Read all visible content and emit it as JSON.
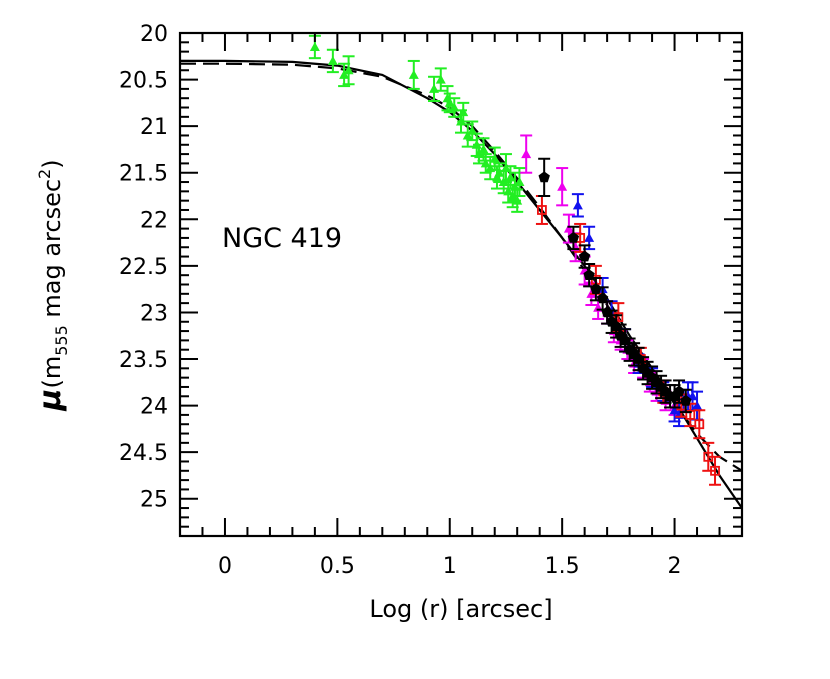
{
  "chart_data": {
    "type": "scatter",
    "title": "",
    "xlabel": "Log (r) [arcsec]",
    "ylabel": {
      "mu": "μ",
      "open": "(m",
      "sub": "555",
      "mid": " mag arcsec",
      "sup": "2",
      "close": ")"
    },
    "annotation": "NGC 419",
    "xlim": [
      -0.2,
      2.3
    ],
    "ylim": [
      20,
      25.4
    ],
    "y_inverted": true,
    "xticks": [
      0,
      0.5,
      1,
      1.5,
      2
    ],
    "xtick_labels": [
      "0",
      "0.5",
      "1",
      "1.5",
      "2"
    ],
    "yticks": [
      20,
      20.5,
      21,
      21.5,
      22,
      22.5,
      23,
      23.5,
      24,
      24.5,
      25
    ],
    "ytick_labels": [
      "20",
      "20.5",
      "21",
      "21.5",
      "22",
      "22.5",
      "23",
      "23.5",
      "24",
      "24.5",
      "25"
    ],
    "colors": {
      "green": "#22ee22",
      "magenta": "#ee00ee",
      "blue": "#1111ee",
      "red": "#ee1111",
      "black": "#000000"
    },
    "series": [
      {
        "name": "green",
        "color": "#22ee22",
        "marker": "triangle",
        "points": [
          [
            0.4,
            20.15,
            0.12
          ],
          [
            0.48,
            20.3,
            0.12
          ],
          [
            0.53,
            20.45,
            0.12
          ],
          [
            0.55,
            20.4,
            0.15
          ],
          [
            0.84,
            20.45,
            0.15
          ],
          [
            0.93,
            20.6,
            0.13
          ],
          [
            0.96,
            20.5,
            0.12
          ],
          [
            0.99,
            20.7,
            0.13
          ],
          [
            1.0,
            20.75,
            0.1
          ],
          [
            1.02,
            20.8,
            0.1
          ],
          [
            1.05,
            20.95,
            0.12
          ],
          [
            1.06,
            20.85,
            0.1
          ],
          [
            1.08,
            21.1,
            0.12
          ],
          [
            1.1,
            21.05,
            0.1
          ],
          [
            1.12,
            21.2,
            0.12
          ],
          [
            1.13,
            21.3,
            0.1
          ],
          [
            1.15,
            21.25,
            0.12
          ],
          [
            1.16,
            21.4,
            0.1
          ],
          [
            1.18,
            21.45,
            0.12
          ],
          [
            1.2,
            21.35,
            0.12
          ],
          [
            1.21,
            21.55,
            0.12
          ],
          [
            1.22,
            21.5,
            0.1
          ],
          [
            1.24,
            21.6,
            0.12
          ],
          [
            1.25,
            21.45,
            0.15
          ],
          [
            1.26,
            21.7,
            0.12
          ],
          [
            1.27,
            21.55,
            0.12
          ],
          [
            1.28,
            21.75,
            0.12
          ],
          [
            1.29,
            21.65,
            0.15
          ],
          [
            1.3,
            21.8,
            0.12
          ],
          [
            1.31,
            21.6,
            0.15
          ]
        ]
      },
      {
        "name": "magenta",
        "color": "#ee00ee",
        "marker": "triangle",
        "points": [
          [
            1.34,
            21.3,
            0.2
          ],
          [
            1.5,
            21.65,
            0.2
          ],
          [
            1.53,
            22.1,
            0.15
          ],
          [
            1.56,
            22.3,
            0.15
          ],
          [
            1.6,
            22.55,
            0.15
          ],
          [
            1.63,
            22.8,
            0.12
          ],
          [
            1.66,
            22.95,
            0.12
          ],
          [
            1.7,
            23.0,
            0.12
          ],
          [
            1.73,
            23.2,
            0.12
          ],
          [
            1.76,
            23.3,
            0.1
          ],
          [
            1.79,
            23.4,
            0.1
          ],
          [
            1.82,
            23.55,
            0.1
          ],
          [
            1.86,
            23.6,
            0.1
          ],
          [
            1.89,
            23.75,
            0.1
          ],
          [
            1.92,
            23.85,
            0.1
          ],
          [
            1.96,
            23.95,
            0.1
          ],
          [
            2.0,
            24.0,
            0.1
          ]
        ]
      },
      {
        "name": "blue",
        "color": "#1111ee",
        "marker": "triangle",
        "points": [
          [
            1.57,
            21.85,
            0.12
          ],
          [
            1.62,
            22.2,
            0.12
          ],
          [
            1.68,
            22.75,
            0.12
          ],
          [
            1.72,
            23.0,
            0.12
          ],
          [
            1.78,
            23.3,
            0.12
          ],
          [
            1.84,
            23.55,
            0.1
          ],
          [
            1.9,
            23.7,
            0.1
          ],
          [
            1.95,
            23.85,
            0.1
          ],
          [
            2.0,
            24.05,
            0.12
          ],
          [
            2.02,
            24.1,
            0.12
          ],
          [
            2.04,
            23.95,
            0.12
          ],
          [
            2.06,
            23.9,
            0.15
          ],
          [
            2.08,
            23.9,
            0.15
          ],
          [
            2.1,
            24.0,
            0.15
          ]
        ]
      },
      {
        "name": "red",
        "color": "#ee1111",
        "marker": "square",
        "points": [
          [
            1.41,
            21.9,
            0.15
          ],
          [
            1.58,
            22.2,
            0.15
          ],
          [
            1.65,
            22.65,
            0.15
          ],
          [
            1.75,
            23.05,
            0.15
          ],
          [
            1.85,
            23.5,
            0.12
          ],
          [
            1.95,
            23.85,
            0.12
          ],
          [
            2.03,
            24.0,
            0.12
          ],
          [
            2.07,
            24.1,
            0.12
          ],
          [
            2.11,
            24.2,
            0.15
          ],
          [
            2.15,
            24.55,
            0.15
          ],
          [
            2.18,
            24.7,
            0.15
          ]
        ]
      },
      {
        "name": "black",
        "color": "#000000",
        "marker": "pentagon",
        "points": [
          [
            1.42,
            21.55,
            0.2
          ],
          [
            1.55,
            22.2,
            0.12
          ],
          [
            1.6,
            22.4,
            0.12
          ],
          [
            1.62,
            22.6,
            0.12
          ],
          [
            1.65,
            22.75,
            0.12
          ],
          [
            1.68,
            22.85,
            0.12
          ],
          [
            1.7,
            23.0,
            0.12
          ],
          [
            1.72,
            23.1,
            0.12
          ],
          [
            1.74,
            23.15,
            0.12
          ],
          [
            1.76,
            23.25,
            0.12
          ],
          [
            1.78,
            23.3,
            0.12
          ],
          [
            1.8,
            23.4,
            0.12
          ],
          [
            1.82,
            23.45,
            0.12
          ],
          [
            1.84,
            23.5,
            0.12
          ],
          [
            1.86,
            23.6,
            0.12
          ],
          [
            1.88,
            23.65,
            0.12
          ],
          [
            1.9,
            23.7,
            0.12
          ],
          [
            1.92,
            23.75,
            0.12
          ],
          [
            1.94,
            23.8,
            0.12
          ],
          [
            1.96,
            23.85,
            0.12
          ],
          [
            1.98,
            23.9,
            0.12
          ],
          [
            2.0,
            23.9,
            0.12
          ],
          [
            2.02,
            23.85,
            0.12
          ],
          [
            2.05,
            23.95,
            0.12
          ]
        ]
      }
    ],
    "fits": [
      {
        "name": "solid-fit",
        "style": "solid",
        "points": [
          [
            -0.2,
            20.3
          ],
          [
            0.0,
            20.3
          ],
          [
            0.3,
            20.31
          ],
          [
            0.5,
            20.35
          ],
          [
            0.7,
            20.45
          ],
          [
            0.9,
            20.7
          ],
          [
            1.0,
            20.85
          ],
          [
            1.1,
            21.05
          ],
          [
            1.2,
            21.3
          ],
          [
            1.3,
            21.6
          ],
          [
            1.4,
            21.9
          ],
          [
            1.5,
            22.2
          ],
          [
            1.6,
            22.5
          ],
          [
            1.7,
            22.85
          ],
          [
            1.8,
            23.25
          ],
          [
            1.9,
            23.6
          ],
          [
            2.0,
            23.95
          ],
          [
            2.1,
            24.35
          ],
          [
            2.2,
            24.75
          ],
          [
            2.3,
            25.1
          ]
        ]
      },
      {
        "name": "dashed-fit",
        "style": "dashed",
        "points": [
          [
            -0.2,
            20.33
          ],
          [
            0.0,
            20.33
          ],
          [
            0.3,
            20.34
          ],
          [
            0.5,
            20.38
          ],
          [
            0.7,
            20.47
          ],
          [
            0.9,
            20.67
          ],
          [
            1.0,
            20.8
          ],
          [
            1.1,
            21.0
          ],
          [
            1.2,
            21.27
          ],
          [
            1.3,
            21.56
          ],
          [
            1.4,
            21.87
          ],
          [
            1.5,
            22.2
          ],
          [
            1.6,
            22.55
          ],
          [
            1.7,
            22.92
          ],
          [
            1.8,
            23.3
          ],
          [
            1.9,
            23.65
          ],
          [
            2.0,
            23.98
          ],
          [
            2.1,
            24.3
          ],
          [
            2.2,
            24.55
          ],
          [
            2.3,
            24.7
          ]
        ]
      }
    ]
  }
}
